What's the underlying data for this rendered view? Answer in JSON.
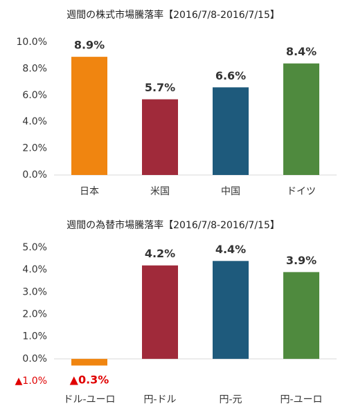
{
  "chart_data": [
    {
      "type": "bar",
      "title": "週間の株式市場騰落率【2016/7/8-2016/7/15】",
      "categories": [
        "日本",
        "米国",
        "中国",
        "ドイツ"
      ],
      "values": [
        8.9,
        5.7,
        6.6,
        8.4
      ],
      "value_labels": [
        "8.9%",
        "5.7%",
        "6.6%",
        "8.4%"
      ],
      "colors": [
        "#f08510",
        "#a02a3a",
        "#1e5a7c",
        "#4f8a3e"
      ],
      "ylim": [
        0,
        10
      ],
      "yticks": [
        {
          "value": 0,
          "label": "0.0%"
        },
        {
          "value": 2,
          "label": "2.0%"
        },
        {
          "value": 4,
          "label": "4.0%"
        },
        {
          "value": 6,
          "label": "6.0%"
        },
        {
          "value": 8,
          "label": "8.0%"
        },
        {
          "value": 10,
          "label": "10.0%"
        }
      ],
      "negative_color": "#e00000"
    },
    {
      "type": "bar",
      "title": "週間の為替市場騰落率【2016/7/8-2016/7/15】",
      "categories": [
        "ドル-ユーロ",
        "円-ドル",
        "円-元",
        "円-ユーロ"
      ],
      "values": [
        -0.3,
        4.2,
        4.4,
        3.9
      ],
      "value_labels": [
        "▲0.3%",
        "4.2%",
        "4.4%",
        "3.9%"
      ],
      "colors": [
        "#f08510",
        "#a02a3a",
        "#1e5a7c",
        "#4f8a3e"
      ],
      "ylim": [
        -1,
        5
      ],
      "yticks": [
        {
          "value": -1,
          "label": "▲1.0%"
        },
        {
          "value": 0,
          "label": "0.0%"
        },
        {
          "value": 1,
          "label": "1.0%"
        },
        {
          "value": 2,
          "label": "2.0%"
        },
        {
          "value": 3,
          "label": "3.0%"
        },
        {
          "value": 4,
          "label": "4.0%"
        },
        {
          "value": 5,
          "label": "5.0%"
        }
      ],
      "negative_color": "#e00000"
    }
  ]
}
